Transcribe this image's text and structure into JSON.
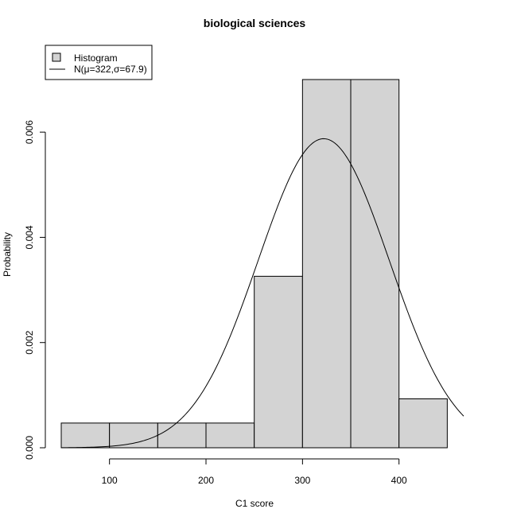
{
  "chart_data": {
    "type": "bar",
    "title": "biological sciences",
    "xlabel": "C1 score",
    "ylabel": "Probability",
    "bins": [
      {
        "start": 50,
        "end": 100,
        "density": 0.00047
      },
      {
        "start": 100,
        "end": 150,
        "density": 0.00047
      },
      {
        "start": 150,
        "end": 200,
        "density": 0.00047
      },
      {
        "start": 200,
        "end": 250,
        "density": 0.00047
      },
      {
        "start": 250,
        "end": 300,
        "density": 0.00326
      },
      {
        "start": 300,
        "end": 350,
        "density": 0.007
      },
      {
        "start": 350,
        "end": 400,
        "density": 0.007
      },
      {
        "start": 400,
        "end": 450,
        "density": 0.00093
      }
    ],
    "normal_curve": {
      "mu": 322,
      "sigma": 67.9
    },
    "xlim": [
      50,
      467
    ],
    "ylim": [
      0,
      0.007
    ],
    "x_ticks": [
      100,
      200,
      300,
      400
    ],
    "y_ticks": [
      "0.000",
      "0.002",
      "0.004",
      "0.006"
    ],
    "legend": {
      "position": "top-left",
      "entries": [
        "Histogram",
        "N(μ=322,σ=67.9)"
      ]
    },
    "colors": {
      "bar_fill": "#d3d3d3",
      "stroke": "#000000"
    },
    "grid": false
  }
}
